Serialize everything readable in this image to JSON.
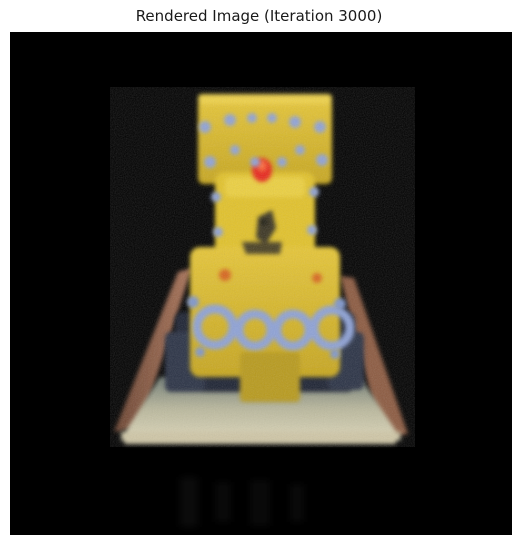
{
  "figure": {
    "title": "Rendered Image (Iteration 3000)"
  },
  "render": {
    "background_color": "#000000",
    "body_color": "#e4c42a",
    "body_shadow_color": "#9a8418",
    "bolt_color": "#8fa3d8",
    "light_color": "#e8251a",
    "base_color": "#d9d2b2",
    "rail_color": "#8a5a3c"
  }
}
